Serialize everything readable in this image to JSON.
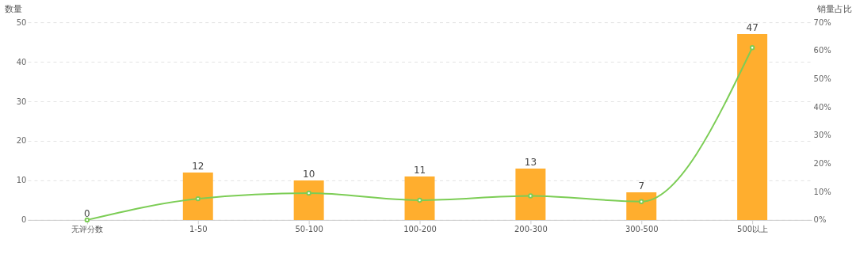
{
  "chart_data": {
    "type": "bar",
    "ylabel": "数量",
    "y2label": "销量占比",
    "categories": [
      "无评分数",
      "1-50",
      "50-100",
      "100-200",
      "200-300",
      "300-500",
      "500以上"
    ],
    "series": [
      {
        "color": "#ffae2e",
        "data_labels": true,
        "values": [
          0,
          12,
          10,
          11,
          13,
          7,
          47
        ]
      },
      {
        "type": "line",
        "axis": "y2",
        "color": "#7ccd55",
        "marker": "circle",
        "values": [
          0,
          7.5,
          9.5,
          7,
          8.5,
          6.5,
          61
        ]
      }
    ],
    "ylim": [
      0,
      50
    ],
    "yticks": [
      0,
      10,
      20,
      30,
      40,
      50
    ],
    "y2lim": [
      0,
      70
    ],
    "y2ticks": [
      {
        "value": 0,
        "label": "0%"
      },
      {
        "value": 10,
        "label": "10%"
      },
      {
        "value": 20,
        "label": "20%"
      },
      {
        "value": 30,
        "label": "30%"
      },
      {
        "value": 40,
        "label": "40%"
      },
      {
        "value": 50,
        "label": "50%"
      },
      {
        "value": 60,
        "label": "60%"
      },
      {
        "value": 70,
        "label": "70%"
      }
    ],
    "grid": "y"
  }
}
